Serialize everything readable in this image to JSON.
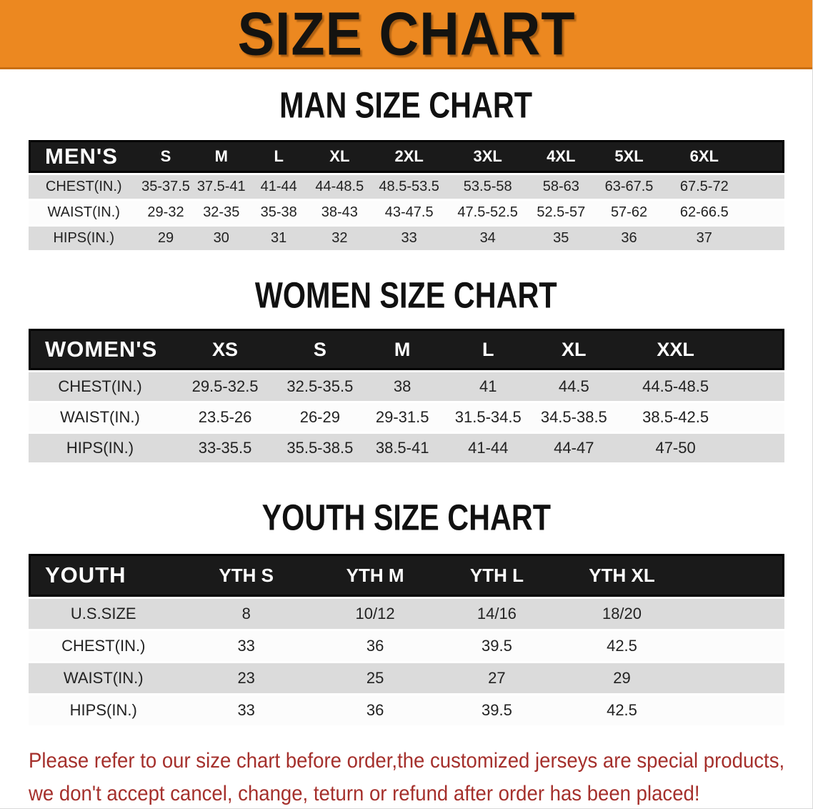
{
  "banner": {
    "title": "SIZE CHART",
    "bg_color": "#EC8820"
  },
  "men": {
    "heading": "MAN SIZE CHART",
    "header_label": "MEN'S",
    "columns": [
      "S",
      "M",
      "L",
      "XL",
      "2XL",
      "3XL",
      "4XL",
      "5XL",
      "6XL"
    ],
    "rows": [
      {
        "label": "CHEST(IN.)",
        "values": [
          "35-37.5",
          "37.5-41",
          "41-44",
          "44-48.5",
          "48.5-53.5",
          "53.5-58",
          "58-63",
          "63-67.5",
          "67.5-72"
        ]
      },
      {
        "label": "WAIST(IN.)",
        "values": [
          "29-32",
          "32-35",
          "35-38",
          "38-43",
          "43-47.5",
          "47.5-52.5",
          "52.5-57",
          "57-62",
          "62-66.5"
        ]
      },
      {
        "label": "HIPS(IN.)",
        "values": [
          "29",
          "30",
          "31",
          "32",
          "33",
          "34",
          "35",
          "36",
          "37"
        ]
      }
    ]
  },
  "women": {
    "heading": "WOMEN SIZE CHART",
    "header_label": "WOMEN'S",
    "columns": [
      "XS",
      "S",
      "M",
      "L",
      "XL",
      "XXL"
    ],
    "rows": [
      {
        "label": "CHEST(IN.)",
        "values": [
          "29.5-32.5",
          "32.5-35.5",
          "38",
          "41",
          "44.5",
          "44.5-48.5"
        ]
      },
      {
        "label": "WAIST(IN.)",
        "values": [
          "23.5-26",
          "26-29",
          "29-31.5",
          "31.5-34.5",
          "34.5-38.5",
          "38.5-42.5"
        ]
      },
      {
        "label": "HIPS(IN.)",
        "values": [
          "33-35.5",
          "35.5-38.5",
          "38.5-41",
          "41-44",
          "44-47",
          "47-50"
        ]
      }
    ]
  },
  "youth": {
    "heading": "YOUTH SIZE CHART",
    "header_label": "YOUTH",
    "columns": [
      "YTH S",
      "YTH M",
      "YTH L",
      "YTH XL"
    ],
    "rows": [
      {
        "label": "U.S.SIZE",
        "values": [
          "8",
          "10/12",
          "14/16",
          "18/20"
        ]
      },
      {
        "label": "CHEST(IN.)",
        "values": [
          "33",
          "36",
          "39.5",
          "42.5"
        ]
      },
      {
        "label": "WAIST(IN.)",
        "values": [
          "23",
          "25",
          "27",
          "29"
        ]
      },
      {
        "label": "HIPS(IN.)",
        "values": [
          "33",
          "36",
          "39.5",
          "42.5"
        ]
      }
    ]
  },
  "disclaimer": {
    "line1": "Please refer to our size chart before order,the customized jerseys are special products,",
    "line2": "we don't accept cancel, change, teturn or refund after order has been placed!",
    "text_color": "#A5302C"
  },
  "colors": {
    "banner_orange": "#EC8820",
    "header_black": "#1a1a1a",
    "row_gray": "#DBDBDB",
    "row_white": "#FCFCFC"
  }
}
